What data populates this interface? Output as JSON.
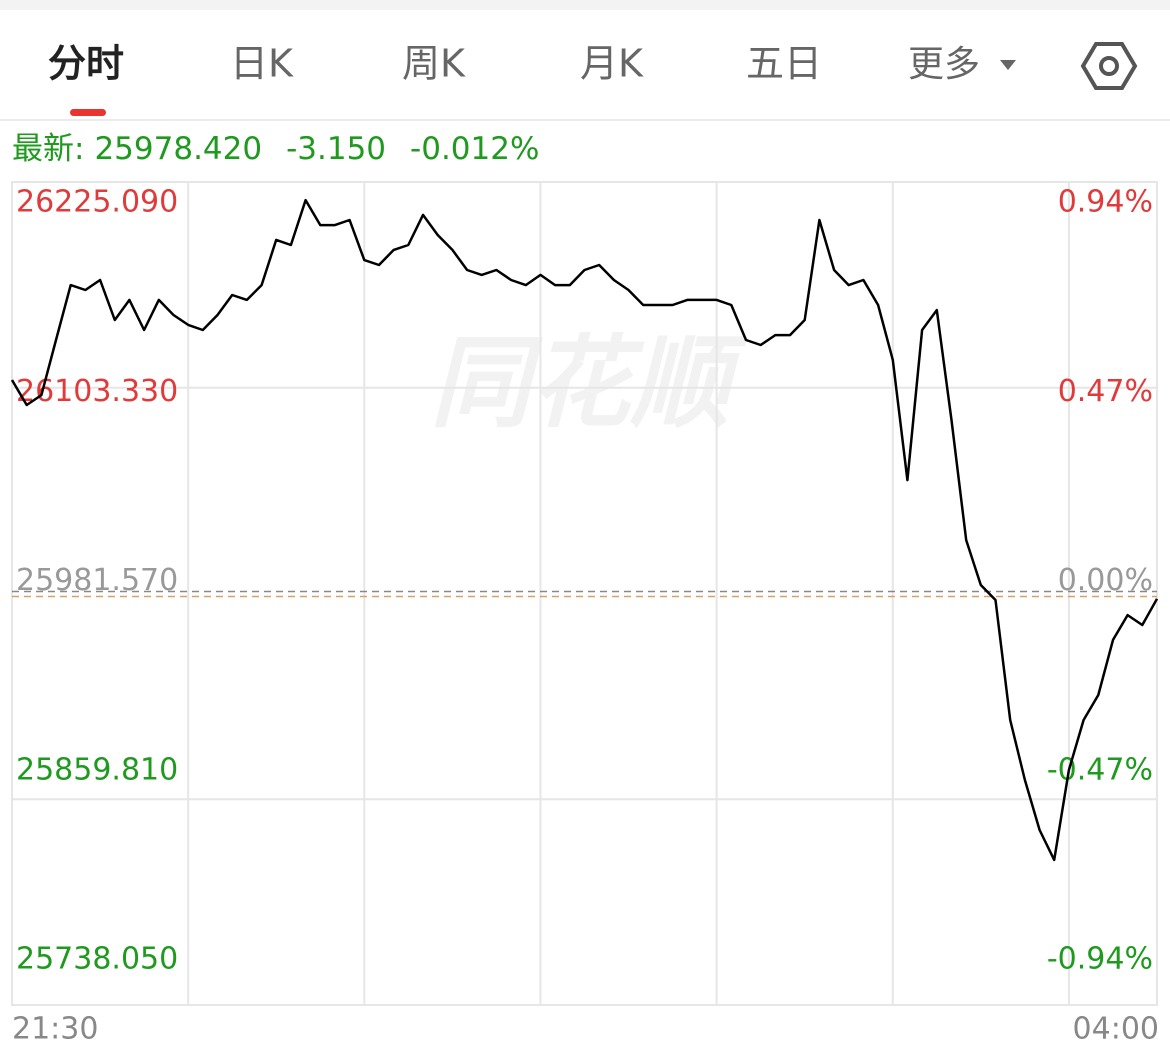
{
  "tabs": [
    "分时",
    "日K",
    "周K",
    "月K",
    "五日"
  ],
  "more": "更多",
  "quote": {
    "label": "最新:",
    "price": "25978.420",
    "change": "-3.150",
    "percent": "-0.012%"
  },
  "chart_data": {
    "type": "line",
    "watermark": "同花顺",
    "categories": [
      "21:30",
      null,
      null,
      null,
      null,
      null,
      null,
      null,
      null,
      null,
      null,
      null,
      null,
      null,
      null,
      null,
      null,
      null,
      null,
      null,
      null,
      null,
      null,
      null,
      null,
      null,
      null,
      null,
      null,
      null,
      null,
      null,
      null,
      null,
      null,
      null,
      null,
      null,
      null,
      null,
      null,
      null,
      null,
      null,
      null,
      null,
      null,
      null,
      null,
      null,
      null,
      null,
      null,
      null,
      null,
      null,
      null,
      null,
      null,
      null,
      null,
      null,
      null,
      null,
      null,
      null,
      null,
      null,
      null,
      null,
      null,
      null,
      null,
      null,
      null,
      null,
      null,
      null,
      "04:00"
    ],
    "values": [
      26107.9,
      26093.1,
      26099.0,
      26131.6,
      26164.1,
      26161.2,
      26167.1,
      26143.4,
      26155.3,
      26137.5,
      26155.3,
      26146.4,
      26140.5,
      26137.5,
      26146.4,
      26158.2,
      26155.3,
      26164.1,
      26190.8,
      26187.8,
      26214.4,
      26199.6,
      26199.6,
      26202.6,
      26178.9,
      26176.0,
      26184.9,
      26187.8,
      26205.6,
      26193.7,
      26184.9,
      26173.0,
      26170.1,
      26173.0,
      26167.1,
      26164.1,
      26170.1,
      26164.1,
      26164.1,
      26173.0,
      26176.0,
      26167.1,
      26161.2,
      26152.3,
      26152.3,
      26152.3,
      26155.3,
      26155.3,
      26155.3,
      26152.3,
      26131.6,
      26128.6,
      26134.5,
      26134.5,
      26143.4,
      26202.6,
      26173.0,
      26164.1,
      26167.1,
      26152.3,
      26119.8,
      26048.7,
      26137.5,
      26149.3,
      26084.2,
      26013.2,
      25986.6,
      25977.7,
      25906.7,
      25871.2,
      25841.6,
      25823.9,
      25877.1,
      25906.7,
      25921.5,
      25954.1,
      25968.8,
      25962.9,
      25978.42
    ],
    "color": "#000000",
    "baseline": 25981.57,
    "ylim": [
      25738.05,
      26225.09
    ],
    "yticks": [
      {
        "value": 25738.05,
        "label": "25738.050"
      },
      {
        "value": 25859.81,
        "label": "25859.810"
      },
      {
        "value": 25981.57,
        "label": "25981.570"
      },
      {
        "value": 26103.33,
        "label": "26103.330"
      },
      {
        "value": 26225.09,
        "label": "26225.090"
      }
    ],
    "y2lim": [
      -0.94,
      0.94
    ],
    "y2ticks": [
      {
        "value": -0.94,
        "label": "-0.94%"
      },
      {
        "value": -0.47,
        "label": "-0.47%"
      },
      {
        "value": 0,
        "label": "0.00%"
      },
      {
        "value": 0.47,
        "label": "0.47%"
      },
      {
        "value": 0.94,
        "label": "0.94%"
      }
    ],
    "up_color": "#e03a3a",
    "down_color": "#1f9a1f",
    "flat_color": "#999999"
  }
}
